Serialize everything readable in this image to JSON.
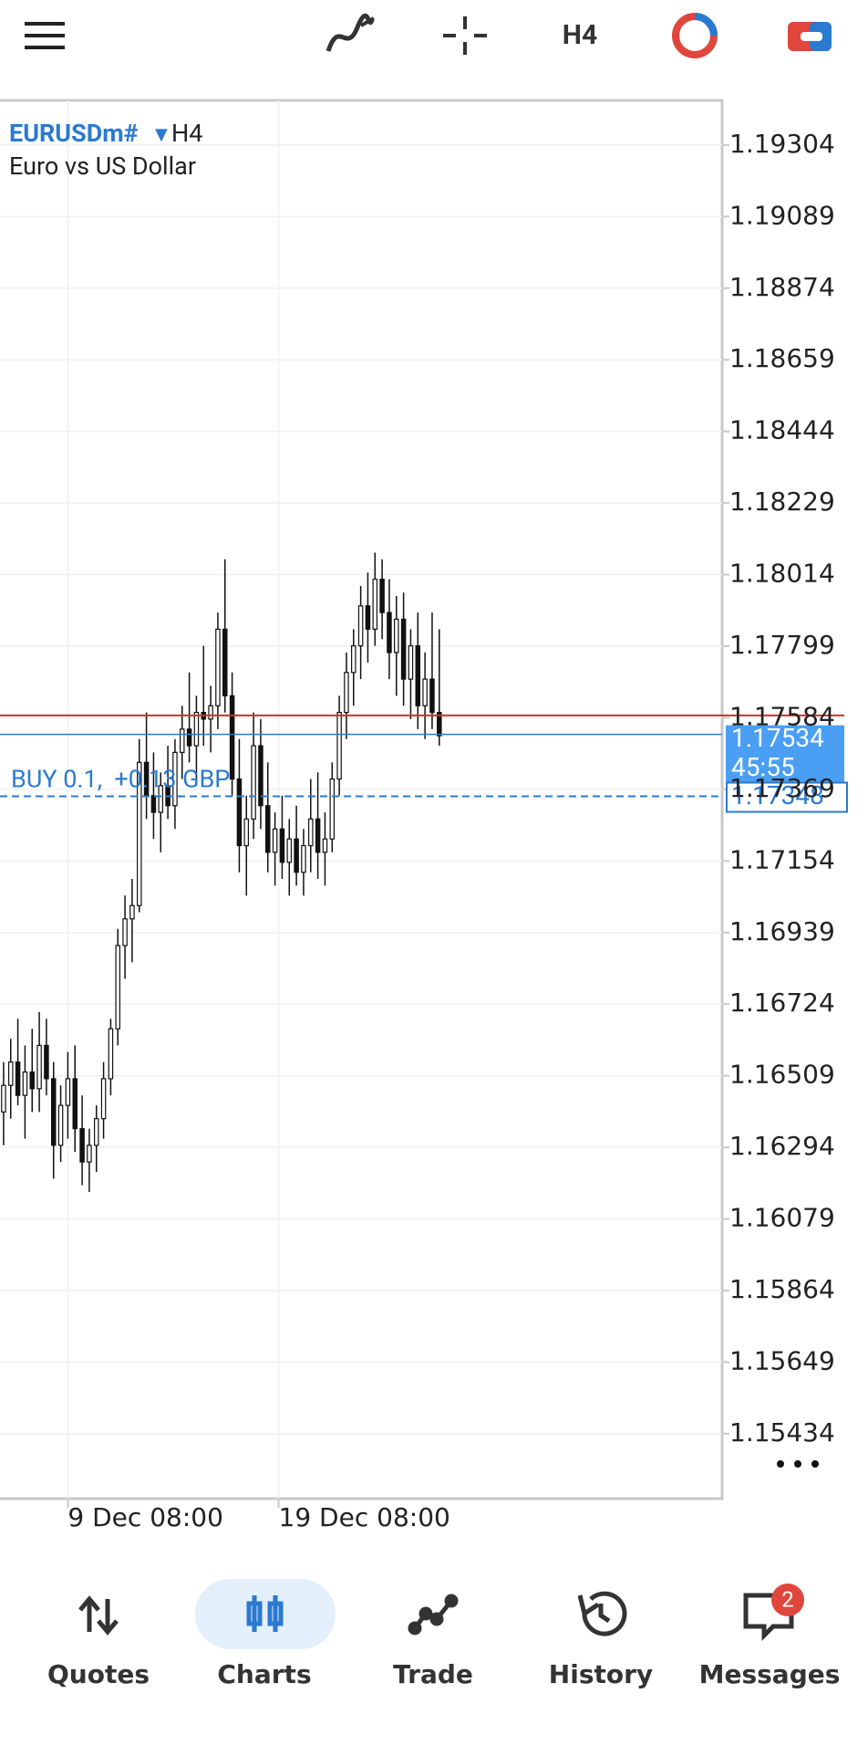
{
  "toolbar": {
    "timeframe": "H4"
  },
  "chart_data": {
    "type": "candlestick",
    "symbol": "EURUSDm#",
    "timeframe": "H4",
    "description": "Euro vs US Dollar",
    "open": [
      1.164,
      1.1648,
      1.1655,
      1.1645,
      1.1652,
      1.1647,
      1.166,
      1.165,
      1.163,
      1.1642,
      1.165,
      1.1635,
      1.1625,
      1.163,
      1.1638,
      1.165,
      1.1665,
      1.169,
      1.1698,
      1.1702,
      1.1745,
      1.1735,
      1.173,
      1.1738,
      1.1732,
      1.1748,
      1.1755,
      1.175,
      1.176,
      1.1758,
      1.1762,
      1.1785,
      1.1765,
      1.174,
      1.172,
      1.1728,
      1.175,
      1.1732,
      1.1718,
      1.1725,
      1.1715,
      1.1722,
      1.1712,
      1.172,
      1.1728,
      1.1718,
      1.1722,
      1.174,
      1.176,
      1.1772,
      1.178,
      1.1792,
      1.1785,
      1.18,
      1.179,
      1.1778,
      1.1788,
      1.177,
      1.178,
      1.1762,
      1.177,
      1.176
    ],
    "high": [
      1.1655,
      1.1662,
      1.1668,
      1.166,
      1.1665,
      1.167,
      1.1668,
      1.1655,
      1.1648,
      1.1658,
      1.166,
      1.1645,
      1.1635,
      1.1642,
      1.1655,
      1.1668,
      1.1695,
      1.1705,
      1.171,
      1.1752,
      1.176,
      1.1748,
      1.1742,
      1.175,
      1.1752,
      1.1762,
      1.1772,
      1.1765,
      1.178,
      1.1768,
      1.179,
      1.1806,
      1.1772,
      1.1752,
      1.1735,
      1.176,
      1.1758,
      1.1745,
      1.173,
      1.1735,
      1.1728,
      1.1732,
      1.1725,
      1.174,
      1.1742,
      1.173,
      1.1745,
      1.1765,
      1.1778,
      1.1785,
      1.1798,
      1.1802,
      1.1808,
      1.1806,
      1.18,
      1.1795,
      1.1796,
      1.1785,
      1.179,
      1.1778,
      1.179,
      1.1785
    ],
    "low": [
      1.163,
      1.1638,
      1.1642,
      1.1632,
      1.164,
      1.164,
      1.1645,
      1.162,
      1.1625,
      1.1632,
      1.1628,
      1.1618,
      1.1616,
      1.1622,
      1.1632,
      1.1645,
      1.166,
      1.168,
      1.1685,
      1.17,
      1.1728,
      1.1722,
      1.1718,
      1.1728,
      1.1725,
      1.174,
      1.1745,
      1.1738,
      1.175,
      1.1748,
      1.1755,
      1.176,
      1.1735,
      1.1712,
      1.1705,
      1.1722,
      1.1725,
      1.1712,
      1.1708,
      1.171,
      1.1705,
      1.1708,
      1.1705,
      1.1712,
      1.171,
      1.1708,
      1.1718,
      1.1735,
      1.1752,
      1.1762,
      1.177,
      1.1775,
      1.178,
      1.1782,
      1.177,
      1.1765,
      1.1762,
      1.1758,
      1.1755,
      1.1752,
      1.1755,
      1.175
    ],
    "close": [
      1.1648,
      1.1655,
      1.1645,
      1.1652,
      1.1647,
      1.166,
      1.165,
      1.163,
      1.1642,
      1.165,
      1.1635,
      1.1625,
      1.163,
      1.1638,
      1.165,
      1.1665,
      1.169,
      1.1698,
      1.1702,
      1.1745,
      1.1735,
      1.173,
      1.1738,
      1.1732,
      1.1748,
      1.1755,
      1.175,
      1.176,
      1.1758,
      1.1762,
      1.1785,
      1.1765,
      1.174,
      1.172,
      1.1728,
      1.175,
      1.1732,
      1.1718,
      1.1725,
      1.1715,
      1.1722,
      1.1712,
      1.172,
      1.1728,
      1.1718,
      1.1722,
      1.174,
      1.176,
      1.1772,
      1.178,
      1.1792,
      1.1785,
      1.18,
      1.179,
      1.1778,
      1.1788,
      1.177,
      1.178,
      1.1762,
      1.177,
      1.176,
      1.1753
    ],
    "xlim": [
      -0.5,
      100.6
    ],
    "xticks": [
      {
        "value": 9,
        "label": "9 Dec 08:00"
      },
      {
        "value": 38.5,
        "label": "19 Dec 08:00"
      }
    ],
    "ylim": [
      1.15239,
      1.19438
    ],
    "yticks": [
      1.19304,
      1.19089,
      1.18874,
      1.18659,
      1.18444,
      1.18229,
      1.18014,
      1.17799,
      1.17584,
      1.17369,
      1.17154,
      1.16939,
      1.16724,
      1.16509,
      1.16294,
      1.16079,
      1.15864,
      1.15649,
      1.15434
    ],
    "grid": true,
    "candle_color": "#111111",
    "ask": 1.17591,
    "ask_color": "#d32f2f",
    "bid": 1.17534,
    "bid_timer": "45:55",
    "bid_color": "#4a9ff5",
    "position": {
      "label": "BUY 0.1,  +0.13 GBP",
      "price": 1.17348,
      "color": "#2a7ad0"
    }
  },
  "nav": {
    "items": [
      "Quotes",
      "Charts",
      "Trade",
      "History",
      "Messages"
    ],
    "active": 1,
    "badge": 2
  }
}
